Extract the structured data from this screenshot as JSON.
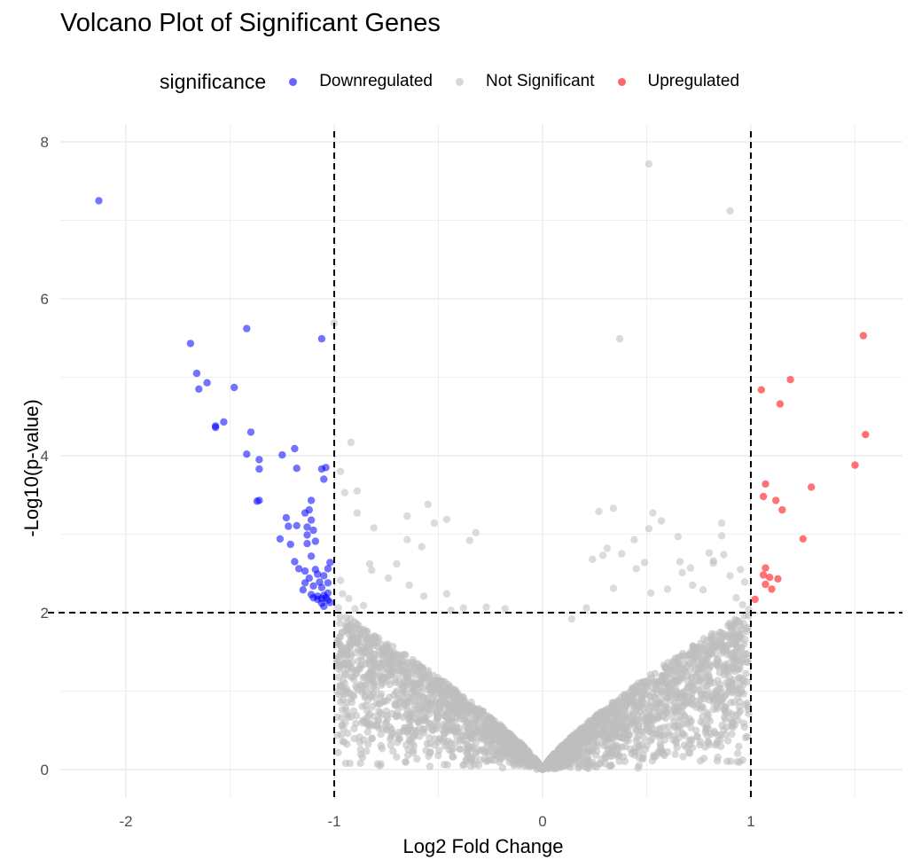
{
  "chart_data": {
    "type": "scatter",
    "title": "Volcano Plot of Significant Genes",
    "xlabel": "Log2 Fold Change",
    "ylabel": "-Log10(p-value)",
    "xlim": [
      -2.3,
      1.7
    ],
    "ylim": [
      -0.3,
      8.15
    ],
    "x_ticks": [
      -2,
      -1,
      0,
      1
    ],
    "x_tick_labels": [
      "-2",
      "-1",
      "0",
      "1"
    ],
    "y_ticks": [
      0,
      2,
      4,
      6,
      8
    ],
    "y_tick_labels": [
      "0",
      "2",
      "4",
      "6",
      "8"
    ],
    "grid": true,
    "legend": {
      "title": "significance",
      "placement": "top",
      "entries": [
        {
          "label": "Downregulated",
          "color": "#0000ff"
        },
        {
          "label": "Not Significant",
          "color": "#bebebe"
        },
        {
          "label": "Upregulated",
          "color": "#ff0000"
        }
      ]
    },
    "thresholds": {
      "vertical_x": [
        -1,
        1
      ],
      "horizontal_y": 2,
      "style": "dashed"
    },
    "series": [
      {
        "name": "Downregulated",
        "color": "#0000ff",
        "points": [
          [
            -2.13,
            7.25
          ],
          [
            -1.69,
            5.43
          ],
          [
            -1.42,
            5.62
          ],
          [
            -1.06,
            5.49
          ],
          [
            -1.66,
            5.05
          ],
          [
            -1.65,
            4.85
          ],
          [
            -1.61,
            4.93
          ],
          [
            -1.48,
            4.87
          ],
          [
            -1.57,
            4.38
          ],
          [
            -1.57,
            4.36
          ],
          [
            -1.53,
            4.43
          ],
          [
            -1.4,
            4.3
          ],
          [
            -1.42,
            4.02
          ],
          [
            -1.36,
            3.95
          ],
          [
            -1.36,
            3.83
          ],
          [
            -1.25,
            4.01
          ],
          [
            -1.19,
            4.09
          ],
          [
            -1.18,
            3.84
          ],
          [
            -1.06,
            3.83
          ],
          [
            -1.04,
            3.85
          ],
          [
            -1.05,
            3.7
          ],
          [
            -1.37,
            3.42
          ],
          [
            -1.36,
            3.43
          ],
          [
            -1.11,
            3.43
          ],
          [
            -1.14,
            3.27
          ],
          [
            -1.12,
            3.31
          ],
          [
            -1.23,
            3.21
          ],
          [
            -1.18,
            3.11
          ],
          [
            -1.22,
            3.1
          ],
          [
            -1.13,
            3.09
          ],
          [
            -1.11,
            3.18
          ],
          [
            -1.1,
            3.05
          ],
          [
            -1.26,
            2.94
          ],
          [
            -1.21,
            2.87
          ],
          [
            -1.13,
            2.99
          ],
          [
            -1.13,
            2.88
          ],
          [
            -1.09,
            2.91
          ],
          [
            -1.11,
            2.72
          ],
          [
            -1.19,
            2.65
          ],
          [
            -1.17,
            2.56
          ],
          [
            -1.14,
            2.53
          ],
          [
            -1.09,
            2.55
          ],
          [
            -1.08,
            2.49
          ],
          [
            -1.05,
            2.47
          ],
          [
            -1.03,
            2.56
          ],
          [
            -1.02,
            2.64
          ],
          [
            -1.12,
            2.44
          ],
          [
            -1.14,
            2.38
          ],
          [
            -1.07,
            2.39
          ],
          [
            -1.06,
            2.32
          ],
          [
            -1.11,
            2.23
          ],
          [
            -1.1,
            2.19
          ],
          [
            -1.08,
            2.21
          ],
          [
            -1.06,
            2.18
          ],
          [
            -1.05,
            2.22
          ],
          [
            -1.04,
            2.19
          ],
          [
            -1.03,
            2.16
          ],
          [
            -1.03,
            2.25
          ],
          [
            -1.02,
            2.13
          ],
          [
            -1.06,
            2.12
          ],
          [
            -1.08,
            2.17
          ],
          [
            -1.05,
            2.08
          ],
          [
            -1.15,
            2.29
          ],
          [
            -1.1,
            2.34
          ],
          [
            -1.03,
            2.38
          ]
        ]
      },
      {
        "name": "Not Significant",
        "color": "#bebebe",
        "points": [
          [
            0.51,
            7.72
          ],
          [
            0.9,
            7.12
          ],
          [
            0.37,
            5.49
          ],
          [
            -1.0,
            5.69
          ],
          [
            -0.92,
            4.17
          ],
          [
            -0.97,
            3.8
          ],
          [
            -0.89,
            3.55
          ],
          [
            -0.95,
            3.53
          ],
          [
            -0.89,
            3.27
          ],
          [
            -0.81,
            3.08
          ],
          [
            -0.65,
            3.23
          ],
          [
            -0.52,
            3.14
          ],
          [
            -0.35,
            2.92
          ],
          [
            -0.32,
            3.02
          ],
          [
            -0.65,
            2.93
          ],
          [
            -0.58,
            2.84
          ],
          [
            -0.82,
            2.54
          ],
          [
            -0.74,
            2.44
          ],
          [
            -0.64,
            2.35
          ],
          [
            -0.46,
            2.24
          ],
          [
            -0.44,
            2.03
          ],
          [
            -0.38,
            2.06
          ],
          [
            -0.27,
            2.07
          ],
          [
            -0.18,
            2.05
          ],
          [
            -0.57,
            2.21
          ],
          [
            -0.97,
            2.41
          ],
          [
            -0.96,
            2.24
          ],
          [
            -0.93,
            2.18
          ],
          [
            -0.98,
            2.06
          ],
          [
            -0.9,
            2.05
          ],
          [
            -0.86,
            2.09
          ],
          [
            -0.83,
            2.62
          ],
          [
            -0.7,
            2.62
          ],
          [
            -0.55,
            3.38
          ],
          [
            -0.46,
            3.19
          ],
          [
            0.27,
            3.29
          ],
          [
            0.34,
            3.33
          ],
          [
            0.53,
            3.27
          ],
          [
            0.57,
            3.17
          ],
          [
            0.51,
            3.07
          ],
          [
            0.44,
            2.93
          ],
          [
            0.65,
            2.97
          ],
          [
            0.86,
            3.14
          ],
          [
            0.86,
            2.98
          ],
          [
            0.8,
            2.76
          ],
          [
            0.87,
            2.74
          ],
          [
            0.82,
            2.66
          ],
          [
            0.66,
            2.65
          ],
          [
            0.71,
            2.57
          ],
          [
            0.31,
            2.82
          ],
          [
            0.24,
            2.68
          ],
          [
            0.29,
            2.73
          ],
          [
            0.38,
            2.75
          ],
          [
            0.49,
            2.64
          ],
          [
            0.45,
            2.56
          ],
          [
            0.82,
            2.63
          ],
          [
            0.67,
            2.51
          ],
          [
            0.34,
            2.31
          ],
          [
            0.52,
            2.25
          ],
          [
            0.6,
            2.3
          ],
          [
            0.72,
            2.35
          ],
          [
            0.77,
            2.29
          ],
          [
            0.9,
            2.47
          ],
          [
            0.93,
            2.19
          ],
          [
            0.96,
            2.1
          ],
          [
            0.99,
            2.04
          ],
          [
            0.21,
            2.06
          ],
          [
            0.14,
            1.92
          ],
          [
            0.97,
            2.39
          ],
          [
            0.95,
            2.55
          ]
        ]
      },
      {
        "name": "Upregulated",
        "color": "#ff0000",
        "points": [
          [
            1.54,
            5.53
          ],
          [
            1.19,
            4.97
          ],
          [
            1.05,
            4.84
          ],
          [
            1.14,
            4.66
          ],
          [
            1.55,
            4.27
          ],
          [
            1.5,
            3.88
          ],
          [
            1.29,
            3.6
          ],
          [
            1.07,
            3.64
          ],
          [
            1.06,
            3.48
          ],
          [
            1.12,
            3.43
          ],
          [
            1.15,
            3.31
          ],
          [
            1.25,
            2.94
          ],
          [
            1.07,
            2.57
          ],
          [
            1.06,
            2.48
          ],
          [
            1.09,
            2.45
          ],
          [
            1.13,
            2.43
          ],
          [
            1.07,
            2.36
          ],
          [
            1.1,
            2.3
          ],
          [
            1.02,
            2.17
          ]
        ]
      }
    ]
  }
}
